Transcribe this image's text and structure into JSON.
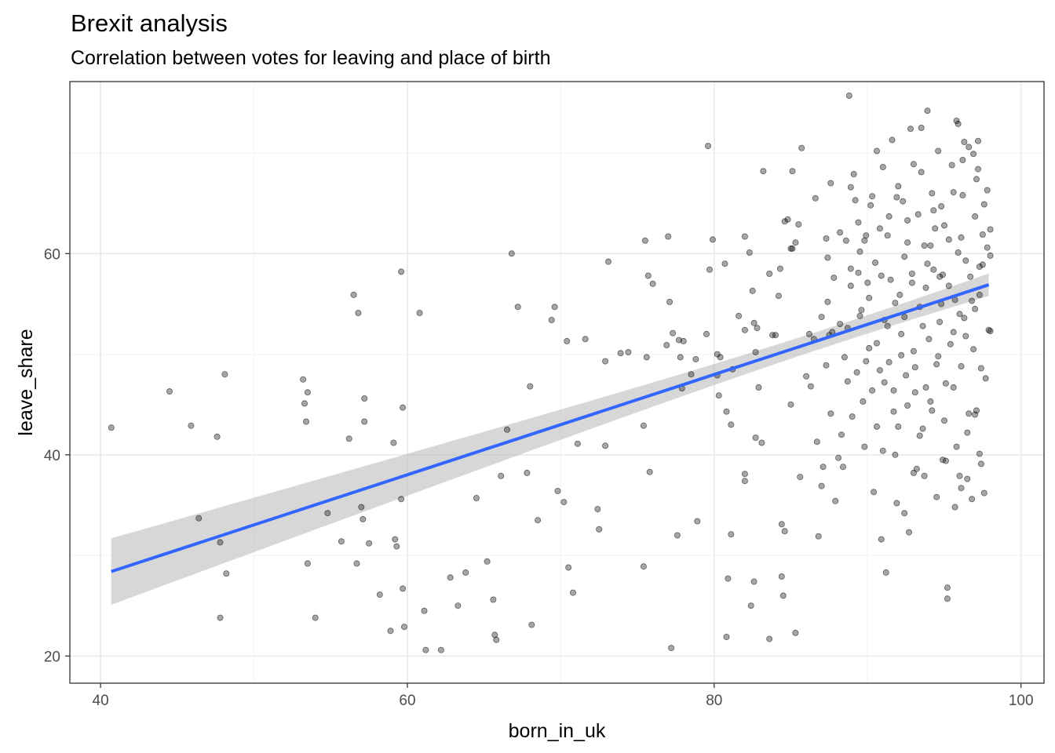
{
  "chart_data": {
    "type": "scatter",
    "title": "Brexit analysis",
    "subtitle": "Correlation between votes for leaving and place of birth",
    "xlabel": "born_in_uk",
    "ylabel": "leave_share",
    "xlim": [
      38,
      101.5
    ],
    "ylim": [
      17.3,
      77.1
    ],
    "xticks": [
      40,
      60,
      80,
      100
    ],
    "yticks": [
      20,
      40,
      60
    ],
    "grid": true,
    "colors": {
      "points": "#000000",
      "fit": "#3366ff",
      "band": "#bdbdbd",
      "grid": "#ebebeb",
      "border": "#333333"
    },
    "fit": {
      "method": "lm",
      "x_start": 40.7,
      "y_start": 28.4,
      "x_end": 97.9,
      "y_end": 56.9,
      "se_at_start": 3.3,
      "se_at_mean": 0.9,
      "x_mean": 88
    },
    "points": [
      [
        40.7,
        42.7
      ],
      [
        44.5,
        46.3
      ],
      [
        45.9,
        42.9
      ],
      [
        46.4,
        33.7
      ],
      [
        47.6,
        41.8
      ],
      [
        47.8,
        31.3
      ],
      [
        47.8,
        23.8
      ],
      [
        48.1,
        48.0
      ],
      [
        48.2,
        28.2
      ],
      [
        53.2,
        47.5
      ],
      [
        53.3,
        45.1
      ],
      [
        53.5,
        46.2
      ],
      [
        53.4,
        43.3
      ],
      [
        53.5,
        29.2
      ],
      [
        54.0,
        23.8
      ],
      [
        54.8,
        34.2
      ],
      [
        55.7,
        31.4
      ],
      [
        56.2,
        41.6
      ],
      [
        56.5,
        55.9
      ],
      [
        56.7,
        29.2
      ],
      [
        56.8,
        54.1
      ],
      [
        57.0,
        34.8
      ],
      [
        57.1,
        33.6
      ],
      [
        57.2,
        45.6
      ],
      [
        57.2,
        43.3
      ],
      [
        57.5,
        31.2
      ],
      [
        58.2,
        26.1
      ],
      [
        58.9,
        22.5
      ],
      [
        59.1,
        41.2
      ],
      [
        59.2,
        31.6
      ],
      [
        59.3,
        30.9
      ],
      [
        59.6,
        58.2
      ],
      [
        59.7,
        44.7
      ],
      [
        59.6,
        35.6
      ],
      [
        59.7,
        26.7
      ],
      [
        59.8,
        22.9
      ],
      [
        60.8,
        54.1
      ],
      [
        61.1,
        24.5
      ],
      [
        61.2,
        20.6
      ],
      [
        62.2,
        20.6
      ],
      [
        62.8,
        27.8
      ],
      [
        63.3,
        25.0
      ],
      [
        63.8,
        28.3
      ],
      [
        64.5,
        35.7
      ],
      [
        65.2,
        29.4
      ],
      [
        65.6,
        25.6
      ],
      [
        65.7,
        22.1
      ],
      [
        65.8,
        21.6
      ],
      [
        66.1,
        37.9
      ],
      [
        66.5,
        42.5
      ],
      [
        66.8,
        60.0
      ],
      [
        67.2,
        54.7
      ],
      [
        67.8,
        38.2
      ],
      [
        68.0,
        46.8
      ],
      [
        68.1,
        23.1
      ],
      [
        68.5,
        33.5
      ],
      [
        69.4,
        53.4
      ],
      [
        69.6,
        54.7
      ],
      [
        69.8,
        36.4
      ],
      [
        70.2,
        35.3
      ],
      [
        70.4,
        51.3
      ],
      [
        70.5,
        28.8
      ],
      [
        70.8,
        26.3
      ],
      [
        71.1,
        41.1
      ],
      [
        71.6,
        51.5
      ],
      [
        72.4,
        34.6
      ],
      [
        72.5,
        32.6
      ],
      [
        72.9,
        49.3
      ],
      [
        72.9,
        40.9
      ],
      [
        73.1,
        59.2
      ],
      [
        73.9,
        50.1
      ],
      [
        74.4,
        50.2
      ],
      [
        75.4,
        42.9
      ],
      [
        75.4,
        28.9
      ],
      [
        75.5,
        61.3
      ],
      [
        75.6,
        49.7
      ],
      [
        75.7,
        57.8
      ],
      [
        75.8,
        38.3
      ],
      [
        76.0,
        57.0
      ],
      [
        76.9,
        50.9
      ],
      [
        77.0,
        61.7
      ],
      [
        77.1,
        55.2
      ],
      [
        77.2,
        20.8
      ],
      [
        77.3,
        52.1
      ],
      [
        77.6,
        32.0
      ],
      [
        77.7,
        51.4
      ],
      [
        77.8,
        49.7
      ],
      [
        77.9,
        46.6
      ],
      [
        78.0,
        51.3
      ],
      [
        78.5,
        48.0
      ],
      [
        78.8,
        49.5
      ],
      [
        78.9,
        33.4
      ],
      [
        79.5,
        52.0
      ],
      [
        79.6,
        70.7
      ],
      [
        79.7,
        58.4
      ],
      [
        79.9,
        61.4
      ],
      [
        80.2,
        47.9
      ],
      [
        80.2,
        50.0
      ],
      [
        80.3,
        45.9
      ],
      [
        80.4,
        49.7
      ],
      [
        80.7,
        59.0
      ],
      [
        80.8,
        44.3
      ],
      [
        80.8,
        21.9
      ],
      [
        80.9,
        27.7
      ],
      [
        81.1,
        32.1
      ],
      [
        81.2,
        48.5
      ],
      [
        81.1,
        43.0
      ],
      [
        81.6,
        53.8
      ],
      [
        82.0,
        52.4
      ],
      [
        82.0,
        61.7
      ],
      [
        82.0,
        38.1
      ],
      [
        82.0,
        37.4
      ],
      [
        82.3,
        60.1
      ],
      [
        82.4,
        25.0
      ],
      [
        82.5,
        56.3
      ],
      [
        82.6,
        53.1
      ],
      [
        82.6,
        27.4
      ],
      [
        82.7,
        50.2
      ],
      [
        82.7,
        41.7
      ],
      [
        82.8,
        52.6
      ],
      [
        82.9,
        46.7
      ],
      [
        83.1,
        41.2
      ],
      [
        83.2,
        68.2
      ],
      [
        83.6,
        58.0
      ],
      [
        83.6,
        21.7
      ],
      [
        83.8,
        51.9
      ],
      [
        84.0,
        51.9
      ],
      [
        84.2,
        55.8
      ],
      [
        84.3,
        58.5
      ],
      [
        84.4,
        33.1
      ],
      [
        84.4,
        27.9
      ],
      [
        84.5,
        26.0
      ],
      [
        84.6,
        32.4
      ],
      [
        84.6,
        63.2
      ],
      [
        84.8,
        63.4
      ],
      [
        85.1,
        60.5
      ],
      [
        85.0,
        45.0
      ],
      [
        85.0,
        60.5
      ],
      [
        85.1,
        68.2
      ],
      [
        85.3,
        22.3
      ],
      [
        85.3,
        61.1
      ],
      [
        85.5,
        62.9
      ],
      [
        85.6,
        37.8
      ],
      [
        85.7,
        70.5
      ],
      [
        86.0,
        47.8
      ],
      [
        86.3,
        46.8
      ],
      [
        86.5,
        51.5
      ],
      [
        86.6,
        65.5
      ],
      [
        86.8,
        31.9
      ],
      [
        87.0,
        53.7
      ],
      [
        87.1,
        38.8
      ],
      [
        87.4,
        59.6
      ],
      [
        87.3,
        61.5
      ],
      [
        87.3,
        48.9
      ],
      [
        87.5,
        51.9
      ],
      [
        87.6,
        44.1
      ],
      [
        87.7,
        52.2
      ],
      [
        87.8,
        57.6
      ],
      [
        87.9,
        35.4
      ],
      [
        88.1,
        39.7
      ],
      [
        88.2,
        53.0
      ],
      [
        88.3,
        42.0
      ],
      [
        88.5,
        49.7
      ],
      [
        88.6,
        61.3
      ],
      [
        88.7,
        47.3
      ],
      [
        88.8,
        75.7
      ],
      [
        88.9,
        58.5
      ],
      [
        89.0,
        43.8
      ],
      [
        89.1,
        67.9
      ],
      [
        89.2,
        65.3
      ],
      [
        89.3,
        48.2
      ],
      [
        89.4,
        63.1
      ],
      [
        89.5,
        60.2
      ],
      [
        89.6,
        54.4
      ],
      [
        89.8,
        40.8
      ],
      [
        89.9,
        61.8
      ],
      [
        90.0,
        57.1
      ],
      [
        90.1,
        50.6
      ],
      [
        90.2,
        64.8
      ],
      [
        90.3,
        46.4
      ],
      [
        90.4,
        36.3
      ],
      [
        90.5,
        59.1
      ],
      [
        90.6,
        42.8
      ],
      [
        90.8,
        62.5
      ],
      [
        90.9,
        31.6
      ],
      [
        91.0,
        68.6
      ],
      [
        91.1,
        53.4
      ],
      [
        91.2,
        28.3
      ],
      [
        91.3,
        61.8
      ],
      [
        91.4,
        49.2
      ],
      [
        91.5,
        57.4
      ],
      [
        91.6,
        71.3
      ],
      [
        91.7,
        44.3
      ],
      [
        91.8,
        40.0
      ],
      [
        91.9,
        35.2
      ],
      [
        92.0,
        66.7
      ],
      [
        92.1,
        55.9
      ],
      [
        92.2,
        52.0
      ],
      [
        92.3,
        65.2
      ],
      [
        92.4,
        59.7
      ],
      [
        92.5,
        47.9
      ],
      [
        92.6,
        61.1
      ],
      [
        92.8,
        72.4
      ],
      [
        92.9,
        57.1
      ],
      [
        93.0,
        50.3
      ],
      [
        93.1,
        46.2
      ],
      [
        93.2,
        38.6
      ],
      [
        93.3,
        63.9
      ],
      [
        93.4,
        54.7
      ],
      [
        93.5,
        68.1
      ],
      [
        93.6,
        42.6
      ],
      [
        93.7,
        60.8
      ],
      [
        93.8,
        56.6
      ],
      [
        93.9,
        74.2
      ],
      [
        94.0,
        51.5
      ],
      [
        94.1,
        45.3
      ],
      [
        94.2,
        66.0
      ],
      [
        94.3,
        58.4
      ],
      [
        94.4,
        62.5
      ],
      [
        94.5,
        35.8
      ],
      [
        94.6,
        49.8
      ],
      [
        94.7,
        53.2
      ],
      [
        94.8,
        64.7
      ],
      [
        94.9,
        57.9
      ],
      [
        95.0,
        43.4
      ],
      [
        95.1,
        39.4
      ],
      [
        95.2,
        26.8
      ],
      [
        95.2,
        25.7
      ],
      [
        95.3,
        61.4
      ],
      [
        95.4,
        51.0
      ],
      [
        95.5,
        68.8
      ],
      [
        95.6,
        46.7
      ],
      [
        95.7,
        55.4
      ],
      [
        95.8,
        73.2
      ],
      [
        95.9,
        60.1
      ],
      [
        96.0,
        37.9
      ],
      [
        96.1,
        48.8
      ],
      [
        96.2,
        65.8
      ],
      [
        96.3,
        53.6
      ],
      [
        96.4,
        59.3
      ],
      [
        96.5,
        42.2
      ],
      [
        96.6,
        70.6
      ],
      [
        96.7,
        57.7
      ],
      [
        96.8,
        35.6
      ],
      [
        96.9,
        50.5
      ],
      [
        97.0,
        63.7
      ],
      [
        97.1,
        44.4
      ],
      [
        97.2,
        68.4
      ],
      [
        97.3,
        55.9
      ],
      [
        97.4,
        39.1
      ],
      [
        97.5,
        61.9
      ],
      [
        97.6,
        36.2
      ],
      [
        97.7,
        47.6
      ],
      [
        97.8,
        66.3
      ],
      [
        97.9,
        52.4
      ],
      [
        98.0,
        59.8
      ],
      [
        98.0,
        62.4
      ],
      [
        98.0,
        52.3
      ],
      [
        97.5,
        58.9
      ],
      [
        96.9,
        69.9
      ],
      [
        96.3,
        71.1
      ],
      [
        95.9,
        72.9
      ],
      [
        96.6,
        44.1
      ],
      [
        94.7,
        57.7
      ],
      [
        93.4,
        41.9
      ],
      [
        92.7,
        32.3
      ],
      [
        92.4,
        34.2
      ],
      [
        91.0,
        40.4
      ],
      [
        89.7,
        45.3
      ],
      [
        88.4,
        38.8
      ],
      [
        87.0,
        36.9
      ],
      [
        86.7,
        41.3
      ],
      [
        87.6,
        67.0
      ],
      [
        88.9,
        66.6
      ],
      [
        90.6,
        70.2
      ],
      [
        91.9,
        65.6
      ],
      [
        93.0,
        68.9
      ],
      [
        94.3,
        64.3
      ],
      [
        95.6,
        66.1
      ],
      [
        97.2,
        71.2
      ],
      [
        97.6,
        64.9
      ],
      [
        96.0,
        54.0
      ],
      [
        95.1,
        47.1
      ],
      [
        93.8,
        46.7
      ],
      [
        92.6,
        44.9
      ],
      [
        91.3,
        52.8
      ],
      [
        90.1,
        55.6
      ],
      [
        88.9,
        56.8
      ],
      [
        89.5,
        53.8
      ],
      [
        90.8,
        48.4
      ],
      [
        92.0,
        42.8
      ],
      [
        93.1,
        48.7
      ],
      [
        94.5,
        49.0
      ],
      [
        95.8,
        40.8
      ],
      [
        97.0,
        44.0
      ],
      [
        97.4,
        48.6
      ],
      [
        96.4,
        51.8
      ],
      [
        95.3,
        56.8
      ],
      [
        94.1,
        60.8
      ],
      [
        92.9,
        58.0
      ],
      [
        91.8,
        55.1
      ],
      [
        90.6,
        51.1
      ],
      [
        89.4,
        58.1
      ],
      [
        88.2,
        62.1
      ],
      [
        91.4,
        63.7
      ],
      [
        92.6,
        63.3
      ],
      [
        93.9,
        59.0
      ],
      [
        95.0,
        62.8
      ],
      [
        96.1,
        61.6
      ],
      [
        97.3,
        58.7
      ],
      [
        96.8,
        55.3
      ],
      [
        94.8,
        55.0
      ],
      [
        93.6,
        52.8
      ],
      [
        92.2,
        49.9
      ],
      [
        90.9,
        57.8
      ],
      [
        89.8,
        61.3
      ],
      [
        90.3,
        65.7
      ],
      [
        93.5,
        72.5
      ],
      [
        94.6,
        70.2
      ],
      [
        96.2,
        69.3
      ],
      [
        97.1,
        67.4
      ],
      [
        97.8,
        60.6
      ],
      [
        97.0,
        54.5
      ],
      [
        95.6,
        52.2
      ],
      [
        94.2,
        44.4
      ],
      [
        93.0,
        38.2
      ],
      [
        91.7,
        46.4
      ],
      [
        96.5,
        37.6
      ],
      [
        97.3,
        40.1
      ],
      [
        95.7,
        34.8
      ],
      [
        94.9,
        39.5
      ],
      [
        96.1,
        36.7
      ],
      [
        93.7,
        37.9
      ],
      [
        92.4,
        53.7
      ],
      [
        91.1,
        47.2
      ],
      [
        89.9,
        49.3
      ],
      [
        88.7,
        52.6
      ],
      [
        87.4,
        55.2
      ],
      [
        86.2,
        52.0
      ]
    ]
  }
}
